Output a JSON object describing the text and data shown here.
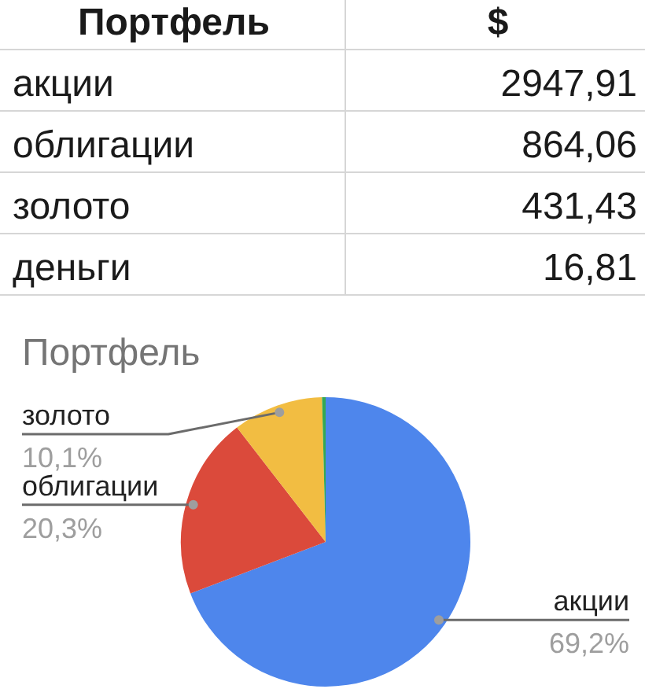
{
  "chart_data": [
    {
      "type": "other",
      "annotations": [
        "Портфель",
        "$"
      ],
      "categories": [
        "акции",
        "облигации",
        "золото",
        "деньги"
      ],
      "values": [
        2947.91,
        864.06,
        431.43,
        16.81
      ],
      "value_labels": [
        "2947,91",
        "864,06",
        "431,43",
        "16,81"
      ]
    },
    {
      "type": "pie",
      "title": "Портфель",
      "categories": [
        "акции",
        "облигации",
        "золото",
        null
      ],
      "values": [
        69.2,
        20.3,
        10.1,
        0.4
      ],
      "colors": [
        "#4e86ec",
        "#db4a3b",
        "#f2bd42",
        "#34a853"
      ],
      "value_labels": [
        "69,2%",
        "20,3%",
        "10,1%",
        null
      ]
    }
  ]
}
